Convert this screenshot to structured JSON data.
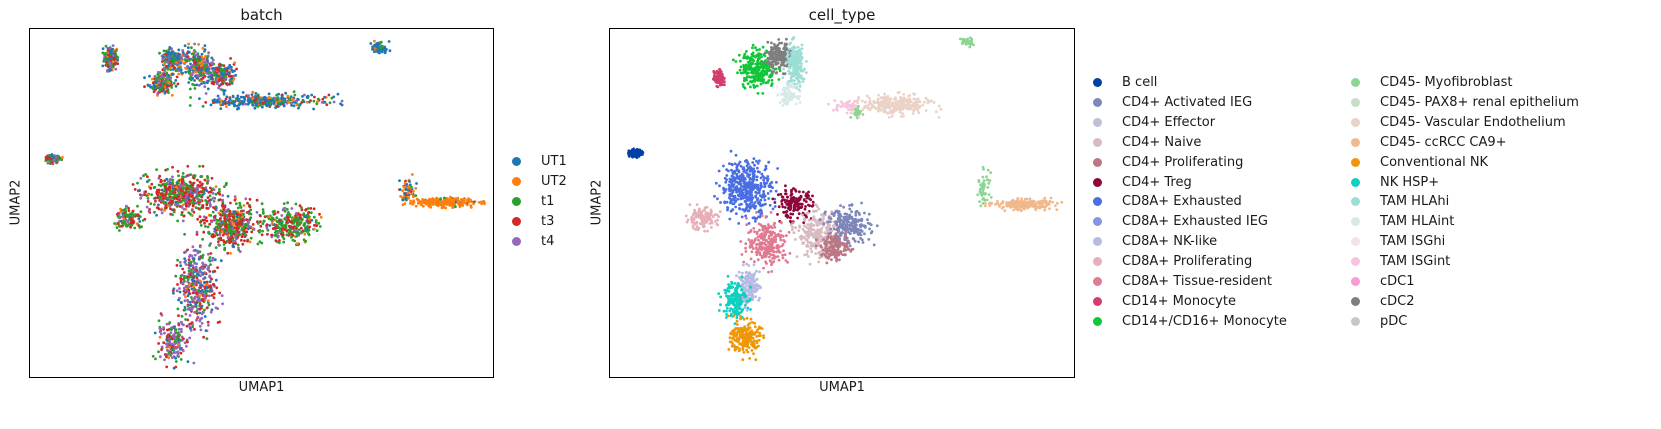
{
  "chart_data": [
    {
      "type": "scatter",
      "title": "batch",
      "xlabel": "UMAP1",
      "ylabel": "UMAP2",
      "grid": false,
      "ticks": false,
      "legend_position": "right",
      "series": [
        {
          "name": "UT1",
          "color": "#1f77b4"
        },
        {
          "name": "UT2",
          "color": "#ff7f0e"
        },
        {
          "name": "t1",
          "color": "#2ca02c"
        },
        {
          "name": "t3",
          "color": "#d62728"
        },
        {
          "name": "t4",
          "color": "#9467bd"
        }
      ],
      "clusters": [
        {
          "x": [
            -5.6,
            -5.2
          ],
          "y": [
            4.5,
            5.3
          ],
          "mix": [
            0.3,
            0.1,
            0.25,
            0.2,
            0.15
          ],
          "n": 320
        },
        {
          "x": [
            -4.2,
            -3.3
          ],
          "y": [
            3.6,
            4.4
          ],
          "mix": [
            0.3,
            0.15,
            0.2,
            0.2,
            0.15
          ],
          "n": 220
        },
        {
          "x": [
            -3.8,
            -2.9
          ],
          "y": [
            4.4,
            5.3
          ],
          "mix": [
            0.35,
            0.1,
            0.25,
            0.15,
            0.15
          ],
          "n": 200
        },
        {
          "x": [
            -3.0,
            -2.1
          ],
          "y": [
            3.9,
            5.3
          ],
          "mix": [
            0.3,
            0.15,
            0.25,
            0.15,
            0.15
          ],
          "n": 220
        },
        {
          "x": [
            -2.3,
            -1.3
          ],
          "y": [
            3.8,
            4.8
          ],
          "mix": [
            0.3,
            0.1,
            0.2,
            0.25,
            0.15
          ],
          "n": 200
        },
        {
          "x": [
            -2.4,
            1.7
          ],
          "y": [
            3.0,
            3.6
          ],
          "mix": [
            0.55,
            0.1,
            0.15,
            0.1,
            0.1
          ],
          "n": 320
        },
        {
          "x": [
            3.0,
            3.6
          ],
          "y": [
            5.0,
            5.6
          ],
          "mix": [
            0.8,
            0.05,
            0.15,
            0,
            0
          ],
          "n": 70
        },
        {
          "x": [
            -7.5,
            -7.0
          ],
          "y": [
            1.0,
            1.3
          ],
          "mix": [
            0.1,
            0.05,
            0.35,
            0.35,
            0.15
          ],
          "n": 110
        },
        {
          "x": [
            -4.4,
            -1.8
          ],
          "y": [
            -1.0,
            0.7
          ],
          "mix": [
            0.05,
            0.05,
            0.3,
            0.45,
            0.15
          ],
          "n": 520
        },
        {
          "x": [
            -5.3,
            -4.3
          ],
          "y": [
            -1.5,
            -0.7
          ],
          "mix": [
            0.05,
            0.05,
            0.55,
            0.2,
            0.15
          ],
          "n": 120
        },
        {
          "x": [
            -2.4,
            -0.5
          ],
          "y": [
            -2.2,
            -0.4
          ],
          "mix": [
            0.05,
            0.05,
            0.35,
            0.4,
            0.15
          ],
          "n": 420
        },
        {
          "x": [
            -0.5,
            1.4
          ],
          "y": [
            -2.0,
            -0.6
          ],
          "mix": [
            0.05,
            0.05,
            0.5,
            0.3,
            0.1
          ],
          "n": 300
        },
        {
          "x": [
            -3.3,
            -1.9
          ],
          "y": [
            -5.3,
            -2.0
          ],
          "mix": [
            0.15,
            0.05,
            0.15,
            0.25,
            0.4
          ],
          "n": 380
        },
        {
          "x": [
            -3.9,
            -2.8
          ],
          "y": [
            -6.5,
            -4.8
          ],
          "mix": [
            0.1,
            0.05,
            0.2,
            0.2,
            0.45
          ],
          "n": 180
        },
        {
          "x": [
            3.9,
            4.5
          ],
          "y": [
            -0.5,
            0.5
          ],
          "mix": [
            0.55,
            0.35,
            0.05,
            0.05,
            0
          ],
          "n": 60
        },
        {
          "x": [
            4.3,
            6.5
          ],
          "y": [
            -0.65,
            -0.3
          ],
          "mix": [
            0.03,
            0.95,
            0.02,
            0,
            0
          ],
          "n": 230
        }
      ],
      "xlim": [
        -8,
        7
      ],
      "ylim": [
        -7,
        6
      ]
    },
    {
      "type": "scatter",
      "title": "cell_type",
      "xlabel": "UMAP1",
      "ylabel": "UMAP2",
      "grid": false,
      "ticks": false,
      "legend_position": "right",
      "legend_columns": 2,
      "series": [
        {
          "name": "B cell",
          "color": "#023fa5"
        },
        {
          "name": "CD4+ Activated IEG",
          "color": "#7d87b9"
        },
        {
          "name": "CD4+ Effector",
          "color": "#bec1d4"
        },
        {
          "name": "CD4+ Naive",
          "color": "#d6bcc0"
        },
        {
          "name": "CD4+ Proliferating",
          "color": "#bb7784"
        },
        {
          "name": "CD4+ Treg",
          "color": "#8e063b"
        },
        {
          "name": "CD8A+ Exhausted",
          "color": "#4a6fe3"
        },
        {
          "name": "CD8A+ Exhausted IEG",
          "color": "#8595e1"
        },
        {
          "name": "CD8A+ NK-like",
          "color": "#b5bbe3"
        },
        {
          "name": "CD8A+ Proliferating",
          "color": "#e6afb9"
        },
        {
          "name": "CD8A+ Tissue-resident",
          "color": "#e07b91"
        },
        {
          "name": "CD14+ Monocyte",
          "color": "#d33f6a"
        },
        {
          "name": "CD14+/CD16+ Monocyte",
          "color": "#11c638"
        },
        {
          "name": "CD45- Myofibroblast",
          "color": "#8dd593"
        },
        {
          "name": "CD45- PAX8+ renal epithelium",
          "color": "#c6dec7"
        },
        {
          "name": "CD45- Vascular Endothelium",
          "color": "#ead3c6"
        },
        {
          "name": "CD45- ccRCC CA9+",
          "color": "#f0b98d"
        },
        {
          "name": "Conventional NK",
          "color": "#ef9708"
        },
        {
          "name": "NK HSP+",
          "color": "#0fcfc0"
        },
        {
          "name": "TAM HLAhi",
          "color": "#9cded6"
        },
        {
          "name": "TAM HLAint",
          "color": "#d5eae7"
        },
        {
          "name": "TAM ISGhi",
          "color": "#f3e1eb"
        },
        {
          "name": "TAM ISGint",
          "color": "#f6c4e1"
        },
        {
          "name": "cDC1",
          "color": "#f79cd4"
        },
        {
          "name": "cDC2",
          "color": "#7f7f7f"
        },
        {
          "name": "pDC",
          "color": "#c7c7c7"
        }
      ],
      "clusters": [
        {
          "x": [
            -5.6,
            -5.2
          ],
          "y": [
            4.3,
            4.9
          ],
          "s": 11,
          "n": 140
        },
        {
          "x": [
            -4.7,
            -3.2
          ],
          "y": [
            4.2,
            5.8
          ],
          "s": 12,
          "n": 260
        },
        {
          "x": [
            -3.6,
            -2.5
          ],
          "y": [
            4.9,
            6.0
          ],
          "s": 24,
          "n": 200
        },
        {
          "x": [
            -2.9,
            -2.1
          ],
          "y": [
            4.2,
            6.0
          ],
          "s": 19,
          "n": 200
        },
        {
          "x": [
            -3.1,
            -2.4
          ],
          "y": [
            3.6,
            4.4
          ],
          "s": 20,
          "n": 80
        },
        {
          "x": [
            -1.2,
            0.1
          ],
          "y": [
            3.3,
            3.8
          ],
          "s": 22,
          "n": 40
        },
        {
          "x": [
            -0.4,
            0.0
          ],
          "y": [
            3.1,
            3.5
          ],
          "s": 13,
          "n": 30
        },
        {
          "x": [
            -0.1,
            2.7
          ],
          "y": [
            3.2,
            4.0
          ],
          "s": 15,
          "n": 280
        },
        {
          "x": [
            3.7,
            4.2
          ],
          "y": [
            5.8,
            6.2
          ],
          "s": 13,
          "n": 40
        },
        {
          "x": [
            -8.8,
            -8.3
          ],
          "y": [
            1.6,
            1.9
          ],
          "s": 0,
          "n": 110
        },
        {
          "x": [
            -5.4,
            -3.3
          ],
          "y": [
            -0.7,
            1.6
          ],
          "s": 6,
          "n": 420
        },
        {
          "x": [
            -6.7,
            -5.4
          ],
          "y": [
            -1.2,
            -0.3
          ],
          "s": 9,
          "n": 130
        },
        {
          "x": [
            -3.3,
            -1.8
          ],
          "y": [
            -0.8,
            0.4
          ],
          "s": 5,
          "n": 150
        },
        {
          "x": [
            -4.4,
            -2.7
          ],
          "y": [
            -2.6,
            -0.7
          ],
          "s": 10,
          "n": 250
        },
        {
          "x": [
            -2.5,
            -0.8
          ],
          "y": [
            -2.3,
            -0.4
          ],
          "s": 3,
          "n": 250
        },
        {
          "x": [
            -1.4,
            0.4
          ],
          "y": [
            -1.8,
            -0.3
          ],
          "s": 1,
          "n": 230
        },
        {
          "x": [
            -1.6,
            -0.4
          ],
          "y": [
            -2.4,
            -1.3
          ],
          "s": 4,
          "n": 150
        },
        {
          "x": [
            -4.7,
            -3.8
          ],
          "y": [
            -4.1,
            -2.6
          ],
          "s": 8,
          "n": 150
        },
        {
          "x": [
            -5.3,
            -4.3
          ],
          "y": [
            -4.6,
            -3.0
          ],
          "s": 18,
          "n": 160
        },
        {
          "x": [
            -5.0,
            -3.8
          ],
          "y": [
            -6.0,
            -4.6
          ],
          "s": 17,
          "n": 200
        },
        {
          "x": [
            4.3,
            4.9
          ],
          "y": [
            -0.3,
            1.2
          ],
          "s": 13,
          "n": 50
        },
        {
          "x": [
            4.9,
            7.3
          ],
          "y": [
            -0.4,
            0.0
          ],
          "s": 16,
          "n": 240
        }
      ],
      "xlim": [
        -9.5,
        8
      ],
      "ylim": [
        -6.8,
        6.5
      ]
    }
  ]
}
